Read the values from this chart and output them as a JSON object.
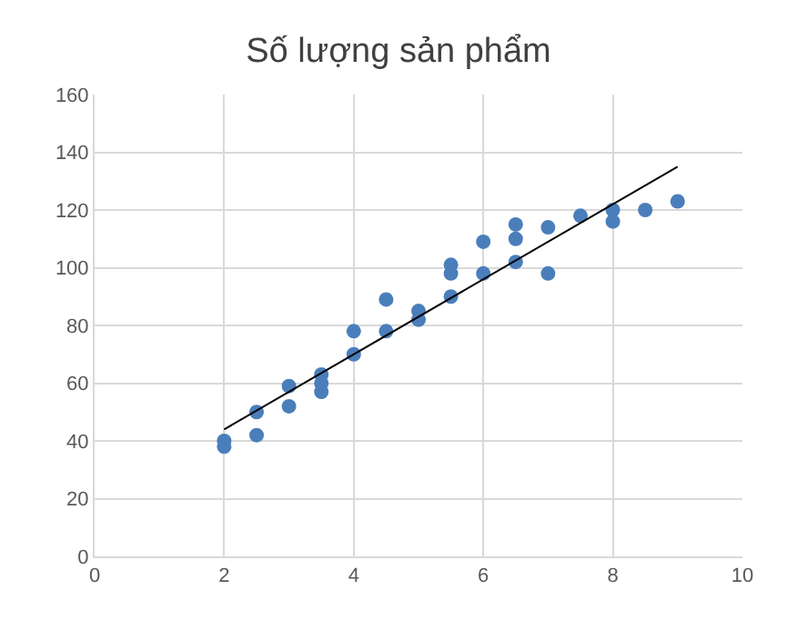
{
  "chart_data": {
    "type": "scatter",
    "title": "Số lượng sản phẩm",
    "x": [
      2,
      2,
      2.5,
      2.5,
      3,
      3,
      3.5,
      3.5,
      3.5,
      4,
      4,
      4.5,
      4.5,
      5,
      5,
      5.5,
      5.5,
      5.5,
      6,
      6,
      6.5,
      6.5,
      6.5,
      7,
      7,
      7.5,
      8,
      8,
      8.5,
      9
    ],
    "series": [
      {
        "color": "#4a7ebb",
        "values": [
          38,
          40,
          50,
          42,
          59,
          52,
          63,
          60,
          57,
          78,
          70,
          89,
          78,
          85,
          82,
          101,
          98,
          90,
          109,
          98,
          115,
          110,
          102,
          114,
          98,
          118,
          120,
          116,
          120,
          123
        ],
        "marker": "circle"
      },
      {
        "type": "line",
        "color": "#000000",
        "x": [
          2,
          9
        ],
        "values": [
          44,
          135
        ]
      }
    ],
    "xlim": [
      0,
      10
    ],
    "xticks": [
      0,
      2,
      4,
      6,
      8,
      10
    ],
    "ylim": [
      0,
      160
    ],
    "yticks": [
      0,
      20,
      40,
      60,
      80,
      100,
      120,
      140,
      160
    ],
    "grid": true
  }
}
